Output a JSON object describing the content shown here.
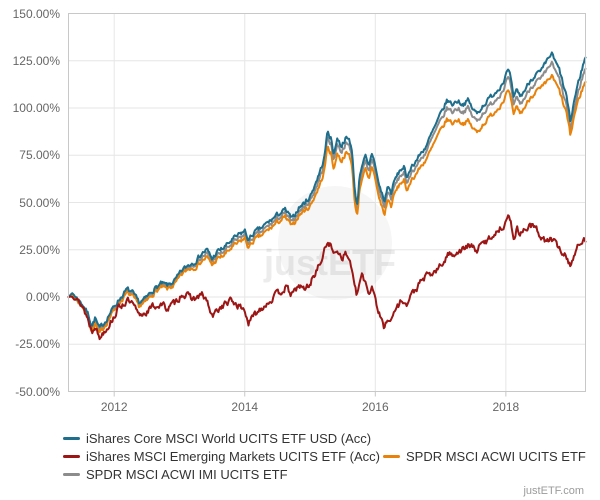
{
  "page": {
    "watermark": "justETF",
    "credit": "justETF.com"
  },
  "chart_data": {
    "type": "line",
    "title": "",
    "legend_position": "bottom",
    "grid": true,
    "x_axis": {
      "range": [
        2011.3,
        2019.22
      ],
      "tick_values": [
        2012,
        2014,
        2016,
        2018
      ],
      "tick_labels": [
        "2012",
        "2014",
        "2016",
        "2018"
      ]
    },
    "y_axis": {
      "range": [
        -50,
        150
      ],
      "tick_values": [
        150,
        125,
        100,
        75,
        50,
        25,
        0,
        -25,
        -50
      ],
      "tick_labels": [
        "150.00%",
        "125.00%",
        "100.00%",
        "75.00%",
        "50.00%",
        "25.00%",
        "0.00%",
        "-25.00%",
        "-50.00%"
      ]
    },
    "x": [
      2011.3,
      2011.36,
      2011.44,
      2011.52,
      2011.6,
      2011.66,
      2011.71,
      2011.77,
      2011.84,
      2011.91,
      2012.0,
      2012.08,
      2012.2,
      2012.28,
      2012.38,
      2012.48,
      2012.6,
      2012.72,
      2012.82,
      2012.94,
      2013.04,
      2013.14,
      2013.24,
      2013.34,
      2013.42,
      2013.5,
      2013.58,
      2013.68,
      2013.8,
      2013.92,
      2014.0,
      2014.06,
      2014.14,
      2014.24,
      2014.38,
      2014.52,
      2014.62,
      2014.73,
      2014.82,
      2014.92,
      2015.0,
      2015.08,
      2015.16,
      2015.22,
      2015.27,
      2015.32,
      2015.36,
      2015.42,
      2015.48,
      2015.54,
      2015.6,
      2015.645,
      2015.68,
      2015.72,
      2015.76,
      2015.8,
      2015.85,
      2015.9,
      2015.95,
      2016.0,
      2016.05,
      2016.1,
      2016.14,
      2016.19,
      2016.24,
      2016.3,
      2016.38,
      2016.44,
      2016.48,
      2016.53,
      2016.62,
      2016.7,
      2016.78,
      2016.86,
      2016.94,
      2017.02,
      2017.1,
      2017.18,
      2017.26,
      2017.34,
      2017.42,
      2017.5,
      2017.56,
      2017.64,
      2017.72,
      2017.8,
      2017.88,
      2017.96,
      2018.03,
      2018.08,
      2018.12,
      2018.17,
      2018.22,
      2018.3,
      2018.38,
      2018.46,
      2018.54,
      2018.62,
      2018.7,
      2018.76,
      2018.82,
      2018.88,
      2018.93,
      2018.99,
      2019.04,
      2019.1,
      2019.16,
      2019.22
    ],
    "series": [
      {
        "name": "iShares Core MSCI World UCITS ETF USD (Acc)",
        "color": "#1e6e8c",
        "noise_group": "developed",
        "volatility": 1.15,
        "values": [
          0,
          2,
          -1,
          -4,
          -9,
          -15,
          -11,
          -17,
          -14,
          -10,
          -5,
          -1,
          4,
          2,
          -3,
          -1,
          4,
          7,
          6,
          9,
          14,
          17,
          19,
          23,
          25,
          20,
          24,
          26,
          30,
          33,
          35,
          30,
          34,
          36,
          40,
          44,
          46,
          41,
          47,
          50,
          53,
          60,
          67,
          74,
          88,
          84,
          76,
          84,
          80,
          84,
          83,
          78,
          58,
          48,
          64,
          71,
          74,
          68,
          76,
          70,
          60,
          55,
          50,
          59,
          55,
          62,
          67,
          69,
          62,
          68,
          72,
          76,
          80,
          86,
          92,
          98,
          104,
          102,
          104,
          102,
          104,
          99,
          97,
          101,
          104,
          107,
          110,
          114,
          120,
          115,
          104,
          110,
          106,
          110,
          115,
          118,
          119,
          124,
          129,
          124,
          120,
          112,
          106,
          92,
          103,
          112,
          120,
          127
        ]
      },
      {
        "name": "iShares MSCI Emerging Markets UCITS ETF (Acc)",
        "color": "#9c1616",
        "noise_group": "emerging",
        "volatility": 1.6,
        "values": [
          0,
          1,
          -2,
          -5,
          -12,
          -18,
          -14,
          -22,
          -18,
          -15,
          -10,
          -5,
          -2,
          -4,
          -10,
          -8,
          -5,
          -4,
          -6,
          -3,
          2,
          0,
          -1,
          1,
          -2,
          -11,
          -7,
          -4,
          -2,
          -5,
          -7,
          -14,
          -10,
          -6,
          -2,
          2,
          5,
          1,
          6,
          4,
          7,
          13,
          18,
          24,
          30,
          27,
          22,
          26,
          21,
          23,
          20,
          15,
          5,
          0,
          8,
          11,
          8,
          2,
          6,
          0,
          -8,
          -13,
          -17,
          -10,
          -13,
          -7,
          -3,
          -1,
          -5,
          0,
          4,
          8,
          11,
          12,
          14,
          17,
          22,
          23,
          24,
          25,
          27,
          26,
          25,
          28,
          30,
          33,
          35,
          38,
          43,
          38,
          32,
          36,
          34,
          36,
          38,
          36,
          32,
          29,
          31,
          28,
          26,
          23,
          21,
          17,
          22,
          26,
          28,
          31
        ]
      },
      {
        "name": "SPDR MSCI ACWI IMI UCITS ETF",
        "color": "#8c8c8c",
        "noise_group": "developed",
        "volatility": 1.15,
        "values": [
          0,
          1,
          -2,
          -5,
          -10,
          -17,
          -13,
          -19,
          -15,
          -11,
          -6,
          -2,
          3,
          1,
          -4,
          -2,
          3,
          6,
          5,
          8,
          13,
          16,
          18,
          21,
          23,
          19,
          22,
          24,
          28,
          31,
          33,
          28,
          32,
          34,
          38,
          42,
          44,
          39,
          45,
          48,
          51,
          57,
          64,
          71,
          85,
          81,
          73,
          81,
          77,
          81,
          80,
          75,
          55,
          46,
          61,
          68,
          71,
          65,
          73,
          67,
          57,
          52,
          47,
          56,
          52,
          59,
          64,
          66,
          59,
          65,
          69,
          73,
          77,
          83,
          89,
          94,
          100,
          98,
          100,
          98,
          100,
          95,
          93,
          97,
          100,
          103,
          106,
          110,
          116,
          111,
          100,
          106,
          102,
          106,
          111,
          114,
          115,
          119,
          124,
          119,
          115,
          107,
          101,
          88,
          98,
          107,
          115,
          121
        ]
      },
      {
        "name": "SPDR MSCI ACWI UCITS ETF",
        "color": "#e8820a",
        "noise_group": "developed",
        "volatility": 1.15,
        "values": [
          0,
          1,
          -2,
          -5,
          -11,
          -18,
          -14,
          -20,
          -16,
          -12,
          -7,
          -3,
          2,
          0,
          -5,
          -3,
          2,
          5,
          4,
          7,
          12,
          15,
          16,
          19,
          21,
          17,
          20,
          22,
          26,
          29,
          31,
          26,
          30,
          32,
          36,
          40,
          42,
          37,
          43,
          46,
          48,
          54,
          60,
          67,
          80,
          76,
          68,
          76,
          72,
          76,
          75,
          70,
          51,
          43,
          57,
          64,
          67,
          61,
          69,
          63,
          53,
          48,
          43,
          52,
          48,
          55,
          60,
          62,
          55,
          61,
          65,
          69,
          73,
          78,
          84,
          89,
          94,
          92,
          94,
          92,
          93,
          89,
          87,
          91,
          94,
          97,
          100,
          104,
          109,
          104,
          95,
          101,
          97,
          101,
          106,
          109,
          110,
          113,
          117,
          113,
          109,
          102,
          97,
          85,
          95,
          103,
          109,
          114
        ]
      }
    ],
    "draw_order": [
      2,
      3,
      0,
      1
    ],
    "legend_rows": [
      [
        0
      ],
      [
        1,
        3
      ],
      [
        2
      ]
    ]
  }
}
